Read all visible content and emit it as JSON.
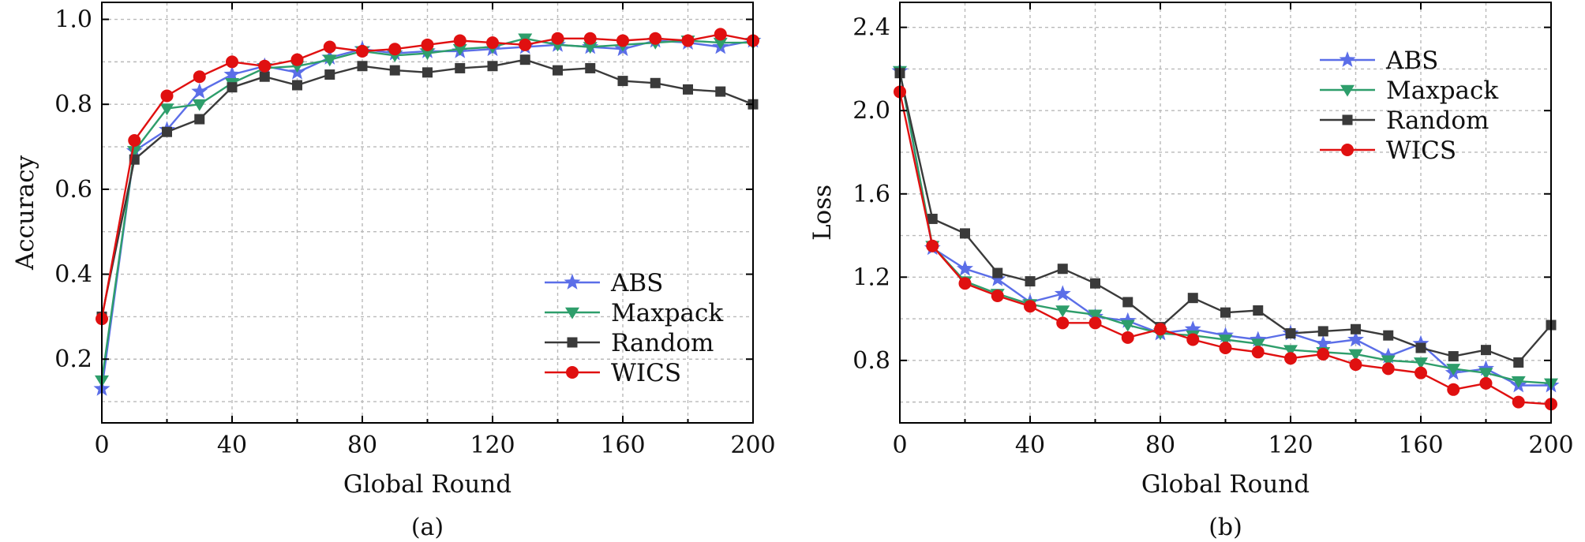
{
  "colors": {
    "ABS": "#5b6ee8",
    "Maxpack": "#2e9e6b",
    "Random": "#3a3a3a",
    "WICS": "#e01010"
  },
  "chart_data": [
    {
      "type": "line",
      "caption": "(a)",
      "xlabel": "Global Round",
      "ylabel": "Accuracy",
      "xlim": [
        0,
        200
      ],
      "ylim": [
        0.05,
        1.04
      ],
      "xticks": [
        0,
        40,
        80,
        120,
        160,
        200
      ],
      "yticks": [
        0.2,
        0.4,
        0.6,
        0.8,
        1.0
      ],
      "ytick_labels": [
        "0.2",
        "0.4",
        "0.6",
        "0.8",
        "1.0"
      ],
      "grid": true,
      "legend_position": "bottom-right",
      "series": [
        {
          "name": "ABS",
          "marker": "star",
          "x": [
            0,
            10,
            20,
            30,
            40,
            50,
            60,
            70,
            80,
            90,
            100,
            110,
            120,
            130,
            140,
            150,
            160,
            170,
            180,
            190,
            200
          ],
          "y": [
            0.13,
            0.69,
            0.74,
            0.83,
            0.87,
            0.89,
            0.875,
            0.91,
            0.93,
            0.92,
            0.925,
            0.925,
            0.93,
            0.935,
            0.94,
            0.935,
            0.93,
            0.95,
            0.945,
            0.935,
            0.95
          ]
        },
        {
          "name": "Maxpack",
          "marker": "triangle-down",
          "x": [
            0,
            10,
            20,
            30,
            40,
            50,
            60,
            70,
            80,
            90,
            100,
            110,
            120,
            130,
            140,
            150,
            160,
            170,
            180,
            190,
            200
          ],
          "y": [
            0.15,
            0.69,
            0.79,
            0.8,
            0.85,
            0.885,
            0.89,
            0.905,
            0.925,
            0.915,
            0.92,
            0.93,
            0.935,
            0.955,
            0.94,
            0.935,
            0.94,
            0.945,
            0.95,
            0.945,
            0.945
          ]
        },
        {
          "name": "Random",
          "marker": "square",
          "x": [
            0,
            10,
            20,
            30,
            40,
            50,
            60,
            70,
            80,
            90,
            100,
            110,
            120,
            130,
            140,
            150,
            160,
            170,
            180,
            190,
            200
          ],
          "y": [
            0.3,
            0.67,
            0.735,
            0.765,
            0.84,
            0.865,
            0.845,
            0.87,
            0.89,
            0.88,
            0.875,
            0.885,
            0.89,
            0.905,
            0.88,
            0.885,
            0.855,
            0.85,
            0.835,
            0.83,
            0.8
          ]
        },
        {
          "name": "WICS",
          "marker": "circle",
          "x": [
            0,
            10,
            20,
            30,
            40,
            50,
            60,
            70,
            80,
            90,
            100,
            110,
            120,
            130,
            140,
            150,
            160,
            170,
            180,
            190,
            200
          ],
          "y": [
            0.295,
            0.715,
            0.82,
            0.865,
            0.9,
            0.89,
            0.905,
            0.935,
            0.925,
            0.93,
            0.94,
            0.95,
            0.945,
            0.94,
            0.955,
            0.955,
            0.95,
            0.955,
            0.95,
            0.965,
            0.95
          ]
        }
      ]
    },
    {
      "type": "line",
      "caption": "(b)",
      "xlabel": "Global Round",
      "ylabel": "Loss",
      "xlim": [
        0,
        200
      ],
      "ylim": [
        0.5,
        2.52
      ],
      "xticks": [
        0,
        40,
        80,
        120,
        160,
        200
      ],
      "yticks": [
        0.8,
        1.2,
        1.6,
        2.0,
        2.4
      ],
      "ytick_labels": [
        "0.8",
        "1.2",
        "1.6",
        "2.0",
        "2.4"
      ],
      "grid": true,
      "legend_position": "top-right",
      "series": [
        {
          "name": "ABS",
          "marker": "star",
          "x": [
            0,
            10,
            20,
            30,
            40,
            50,
            60,
            70,
            80,
            90,
            100,
            110,
            120,
            130,
            140,
            150,
            160,
            170,
            180,
            190,
            200
          ],
          "y": [
            2.19,
            1.34,
            1.24,
            1.19,
            1.08,
            1.12,
            1.01,
            0.99,
            0.93,
            0.95,
            0.92,
            0.9,
            0.93,
            0.88,
            0.9,
            0.82,
            0.88,
            0.74,
            0.76,
            0.68,
            0.68
          ]
        },
        {
          "name": "Maxpack",
          "marker": "triangle-down",
          "x": [
            0,
            10,
            20,
            30,
            40,
            50,
            60,
            70,
            80,
            90,
            100,
            110,
            120,
            130,
            140,
            150,
            160,
            170,
            180,
            190,
            200
          ],
          "y": [
            2.19,
            1.35,
            1.18,
            1.12,
            1.07,
            1.04,
            1.02,
            0.97,
            0.93,
            0.92,
            0.9,
            0.88,
            0.85,
            0.84,
            0.83,
            0.8,
            0.79,
            0.76,
            0.74,
            0.7,
            0.69
          ]
        },
        {
          "name": "Random",
          "marker": "square",
          "x": [
            0,
            10,
            20,
            30,
            40,
            50,
            60,
            70,
            80,
            90,
            100,
            110,
            120,
            130,
            140,
            150,
            160,
            170,
            180,
            190,
            200
          ],
          "y": [
            2.18,
            1.48,
            1.41,
            1.22,
            1.18,
            1.24,
            1.17,
            1.08,
            0.96,
            1.1,
            1.03,
            1.04,
            0.93,
            0.94,
            0.95,
            0.92,
            0.86,
            0.82,
            0.85,
            0.79,
            0.97
          ]
        },
        {
          "name": "WICS",
          "marker": "circle",
          "x": [
            0,
            10,
            20,
            30,
            40,
            50,
            60,
            70,
            80,
            90,
            100,
            110,
            120,
            130,
            140,
            150,
            160,
            170,
            180,
            190,
            200
          ],
          "y": [
            2.09,
            1.35,
            1.17,
            1.11,
            1.06,
            0.98,
            0.98,
            0.91,
            0.95,
            0.9,
            0.86,
            0.84,
            0.81,
            0.83,
            0.78,
            0.76,
            0.74,
            0.66,
            0.69,
            0.6,
            0.59
          ]
        }
      ]
    }
  ]
}
